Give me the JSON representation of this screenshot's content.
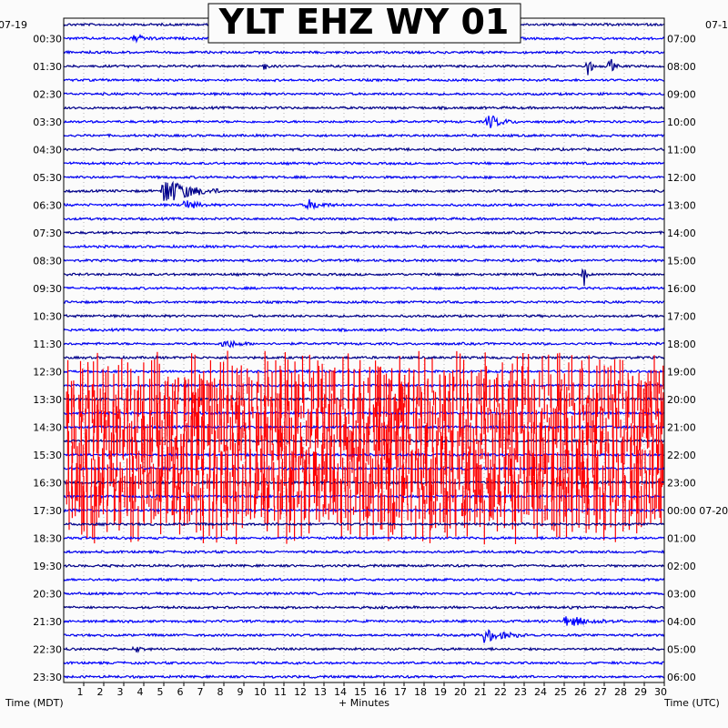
{
  "chart_data": {
    "type": "helicorder",
    "title": "YLT EHZ WY 01",
    "date_left": "07-19",
    "date_right": "07-1",
    "xlabel": "+ Minutes",
    "ylabel_left": "Time (MDT)",
    "ylabel_right": "Time (UTC)",
    "x_ticks": [
      1,
      2,
      3,
      4,
      5,
      6,
      7,
      8,
      9,
      10,
      11,
      12,
      13,
      14,
      15,
      16,
      17,
      18,
      19,
      20,
      21,
      22,
      23,
      24,
      25,
      26,
      27,
      28,
      29,
      30
    ],
    "xlim": [
      0,
      30
    ],
    "trace_count": 48,
    "trace_colors": [
      "#00008b",
      "#0000ff",
      "#0000ee"
    ],
    "clip_color": "#ff0000",
    "grid": true,
    "left_labels": [
      "00:30",
      "01:30",
      "02:30",
      "03:30",
      "04:30",
      "05:30",
      "06:30",
      "07:30",
      "08:30",
      "09:30",
      "10:30",
      "11:30",
      "12:30",
      "13:30",
      "14:30",
      "15:30",
      "16:30",
      "17:30",
      "18:30",
      "19:30",
      "20:30",
      "21:30",
      "22:30",
      "23:30"
    ],
    "right_labels": [
      "07:00",
      "08:00",
      "09:00",
      "10:00",
      "11:00",
      "12:00",
      "13:00",
      "14:00",
      "15:00",
      "16:00",
      "17:00",
      "18:00",
      "19:00",
      "20:00",
      "21:00",
      "22:00",
      "23:00",
      "00:00 07-20",
      "01:00",
      "02:00",
      "03:00",
      "04:00",
      "05:00",
      "06:00"
    ],
    "events": [
      {
        "trace": 1,
        "minute": 3.5,
        "amplitude": 0.25,
        "duration": 1.5
      },
      {
        "trace": 3,
        "minute": 10.0,
        "amplitude": 0.3,
        "duration": 0.5
      },
      {
        "trace": 3,
        "minute": 26.2,
        "amplitude": 0.8,
        "duration": 0.4
      },
      {
        "trace": 3,
        "minute": 27.3,
        "amplitude": 0.7,
        "duration": 0.4
      },
      {
        "trace": 7,
        "minute": 21.2,
        "amplitude": 0.55,
        "duration": 1.5
      },
      {
        "trace": 12,
        "minute": 5.0,
        "amplitude": 1.1,
        "duration": 3.0
      },
      {
        "trace": 13,
        "minute": 6.0,
        "amplitude": 0.4,
        "duration": 1.5
      },
      {
        "trace": 13,
        "minute": 12.2,
        "amplitude": 0.4,
        "duration": 1.5
      },
      {
        "trace": 18,
        "minute": 26.0,
        "amplitude": 0.8,
        "duration": 0.3
      },
      {
        "trace": 23,
        "minute": 8.0,
        "amplitude": 0.35,
        "duration": 1.5
      },
      {
        "trace": 43,
        "minute": 25.0,
        "amplitude": 0.4,
        "duration": 3.0
      },
      {
        "trace": 44,
        "minute": 21.0,
        "amplitude": 0.5,
        "duration": 2.5
      },
      {
        "trace": 45,
        "minute": 3.5,
        "amplitude": 0.3,
        "duration": 0.6
      }
    ],
    "clipped_traces": [
      26,
      27,
      28,
      29,
      30,
      31,
      32,
      33,
      34,
      35
    ]
  }
}
